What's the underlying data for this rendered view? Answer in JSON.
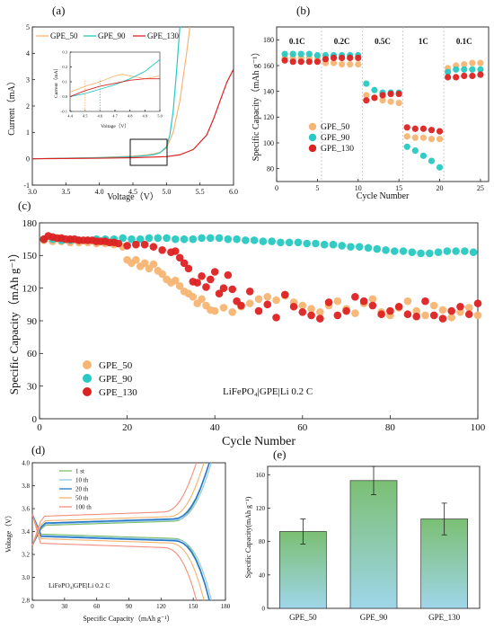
{
  "colors": {
    "gpe50": "#f7b573",
    "gpe90": "#27c9c2",
    "gpe130": "#dd2222",
    "bar_top": "#7bbf73",
    "bar_bottom": "#9fd6ea"
  },
  "chart_data": [
    {
      "panel": "(a)",
      "type": "line",
      "xlabel": "Voltage（V）",
      "ylabel": "Current（mA）",
      "xlim": [
        3.0,
        6.0
      ],
      "ylim": [
        -1,
        5
      ],
      "xticks": [
        "3.0",
        "3.5",
        "4.0",
        "4.5",
        "5.0",
        "5.5",
        "6.0"
      ],
      "yticks": [
        "-1",
        "0",
        "1",
        "2",
        "3",
        "4",
        "5"
      ],
      "legend": [
        "GPE_50",
        "GPE_90",
        "GPE_130"
      ],
      "series": [
        {
          "name": "GPE_50",
          "x": [
            3.0,
            3.5,
            4.0,
            4.3,
            4.5,
            4.7,
            4.8,
            4.9,
            5.0,
            5.1,
            5.2,
            5.3,
            5.35
          ],
          "y": [
            0.0,
            0.02,
            0.05,
            0.08,
            0.1,
            0.14,
            0.18,
            0.24,
            0.4,
            1.0,
            2.2,
            4.0,
            5.0
          ]
        },
        {
          "name": "GPE_90",
          "x": [
            3.0,
            3.5,
            4.0,
            4.3,
            4.5,
            4.7,
            4.8,
            4.9,
            5.0,
            5.05,
            5.1,
            5.15,
            5.2
          ],
          "y": [
            0.0,
            0.02,
            0.04,
            0.06,
            0.08,
            0.12,
            0.15,
            0.22,
            0.45,
            0.9,
            1.8,
            3.3,
            5.0
          ]
        },
        {
          "name": "GPE_130",
          "x": [
            3.0,
            3.5,
            4.0,
            4.5,
            5.0,
            5.2,
            5.4,
            5.6,
            5.7,
            5.8,
            5.9,
            6.0
          ],
          "y": [
            0.0,
            0.01,
            0.02,
            0.04,
            0.08,
            0.15,
            0.35,
            0.9,
            1.5,
            2.2,
            2.9,
            3.4
          ]
        }
      ],
      "inset": {
        "xlabel": "Voltage（V）",
        "ylabel": "Current（mA）",
        "xlim": [
          4.4,
          5.0
        ],
        "ylim": [
          -0.1,
          0.3
        ],
        "xticks": [
          "4.4",
          "4.5",
          "4.6",
          "4.7",
          "4.8",
          "4.9",
          "5.0"
        ],
        "yticks": [
          "-0.1",
          "0.0",
          "0.1",
          "0.2",
          "0.3"
        ],
        "series": [
          {
            "name": "GPE_50",
            "x": [
              4.4,
              4.5,
              4.6,
              4.7,
              4.75,
              4.8,
              4.9,
              5.0
            ],
            "y": [
              0.03,
              0.07,
              0.1,
              0.14,
              0.15,
              0.14,
              0.12,
              0.14
            ]
          },
          {
            "name": "GPE_90",
            "x": [
              4.4,
              4.5,
              4.6,
              4.7,
              4.8,
              4.9,
              5.0
            ],
            "y": [
              0.0,
              0.02,
              0.05,
              0.08,
              0.12,
              0.17,
              0.25
            ]
          },
          {
            "name": "GPE_130",
            "x": [
              4.4,
              4.5,
              4.6,
              4.7,
              4.8,
              4.9,
              5.0
            ],
            "y": [
              0.0,
              0.04,
              0.07,
              0.09,
              0.11,
              0.12,
              0.12
            ]
          }
        ]
      }
    },
    {
      "panel": "(b)",
      "type": "scatter",
      "xlabel": "Cycle Number",
      "ylabel": "Specific Capacity（mAh g⁻¹）",
      "xlim": [
        0,
        26
      ],
      "ylim": [
        70,
        190
      ],
      "xticks": [
        "0",
        "5",
        "10",
        "15",
        "20",
        "25"
      ],
      "yticks": [
        "80",
        "100",
        "120",
        "140",
        "160",
        "180"
      ],
      "rate_labels": [
        "0.1C",
        "0.2C",
        "0.5C",
        "1C",
        "0.1C"
      ],
      "rate_label_x": [
        2.5,
        8,
        13,
        18,
        23
      ],
      "separators": [
        5.5,
        10.5,
        15.5,
        20.5
      ],
      "legend": [
        "GPE_50",
        "GPE_90",
        "GPE_130"
      ],
      "series": [
        {
          "name": "GPE_50",
          "x": [
            1,
            2,
            3,
            4,
            5,
            6,
            7,
            8,
            9,
            10,
            11,
            12,
            13,
            14,
            15,
            16,
            17,
            18,
            19,
            20,
            21,
            22,
            23,
            24,
            25
          ],
          "y": [
            166,
            166,
            166,
            166,
            166,
            162,
            162,
            161,
            161,
            161,
            137,
            135,
            133,
            132,
            131,
            105,
            104,
            104,
            103,
            103,
            158,
            160,
            161,
            162,
            162
          ]
        },
        {
          "name": "GPE_90",
          "x": [
            1,
            2,
            3,
            4,
            5,
            6,
            7,
            8,
            9,
            10,
            11,
            12,
            13,
            14,
            15,
            16,
            17,
            18,
            19,
            20,
            21,
            22,
            23,
            24,
            25
          ],
          "y": [
            169,
            169,
            169,
            169,
            168,
            168,
            168,
            168,
            168,
            168,
            146,
            141,
            139,
            139,
            139,
            97,
            94,
            90,
            86,
            81,
            155,
            157,
            157,
            157,
            157
          ]
        },
        {
          "name": "GPE_130",
          "x": [
            1,
            2,
            3,
            4,
            5,
            6,
            7,
            8,
            9,
            10,
            11,
            12,
            13,
            14,
            15,
            16,
            17,
            18,
            19,
            20,
            21,
            22,
            23,
            24,
            25
          ],
          "y": [
            164,
            163,
            163,
            163,
            163,
            165,
            166,
            166,
            166,
            166,
            133,
            135,
            137,
            138,
            138,
            112,
            111,
            111,
            110,
            109,
            151,
            151,
            152,
            152,
            153
          ]
        }
      ]
    },
    {
      "panel": "(c)",
      "type": "scatter",
      "xlabel": "Cycle Number",
      "ylabel": "Specific Capacity（mAh g⁻¹）",
      "xlim": [
        0,
        100
      ],
      "ylim": [
        0,
        180
      ],
      "xticks": [
        "0",
        "20",
        "40",
        "60",
        "80",
        "100"
      ],
      "yticks": [
        "0",
        "30",
        "60",
        "90",
        "120",
        "150",
        "180"
      ],
      "annotation": "LiFePO₄|GPE|Li   0.2 C",
      "legend": [
        "GPE_50",
        "GPE_90",
        "GPE_130"
      ],
      "series": [
        {
          "name": "GPE_50",
          "x": [
            1,
            3,
            5,
            7,
            9,
            11,
            13,
            15,
            17,
            19,
            20,
            21,
            22,
            23,
            24,
            25,
            26,
            27,
            28,
            29,
            30,
            31,
            32,
            33,
            34,
            35,
            36,
            37,
            38,
            39,
            40,
            42,
            44,
            46,
            48,
            50,
            52,
            54,
            56,
            58,
            60,
            62,
            64,
            66,
            68,
            70,
            72,
            74,
            76,
            78,
            80,
            82,
            84,
            86,
            88,
            90,
            92,
            94,
            96,
            98,
            100
          ],
          "y": [
            164,
            163,
            163,
            162,
            162,
            162,
            161,
            161,
            160,
            158,
            146,
            143,
            146,
            140,
            143,
            138,
            142,
            136,
            133,
            128,
            125,
            127,
            122,
            117,
            115,
            112,
            106,
            110,
            104,
            100,
            99,
            102,
            98,
            103,
            106,
            110,
            112,
            109,
            113,
            107,
            104,
            101,
            98,
            104,
            108,
            101,
            97,
            106,
            110,
            98,
            95,
            102,
            108,
            99,
            95,
            104,
            100,
            93,
            98,
            102,
            95
          ]
        },
        {
          "name": "GPE_90",
          "x": [
            1,
            3,
            5,
            7,
            9,
            11,
            13,
            15,
            17,
            19,
            21,
            23,
            25,
            27,
            29,
            31,
            33,
            35,
            37,
            39,
            41,
            43,
            45,
            47,
            49,
            51,
            53,
            55,
            57,
            59,
            61,
            63,
            65,
            67,
            69,
            71,
            73,
            75,
            77,
            79,
            81,
            83,
            85,
            87,
            89,
            91,
            93,
            95,
            97,
            99
          ],
          "y": [
            165,
            165,
            164,
            164,
            164,
            164,
            165,
            165,
            165,
            166,
            165,
            165,
            166,
            166,
            166,
            165,
            165,
            165,
            166,
            166,
            166,
            165,
            165,
            164,
            164,
            163,
            163,
            162,
            162,
            162,
            161,
            161,
            160,
            160,
            159,
            158,
            158,
            157,
            156,
            155,
            154,
            154,
            153,
            152,
            152,
            153,
            154,
            154,
            154,
            153
          ]
        },
        {
          "name": "GPE_130",
          "x": [
            1,
            2,
            3,
            4,
            5,
            6,
            7,
            8,
            9,
            10,
            11,
            12,
            13,
            14,
            15,
            16,
            17,
            18,
            20,
            22,
            24,
            26,
            28,
            30,
            31,
            32,
            33,
            34,
            35,
            36,
            37,
            38,
            39,
            40,
            41,
            42,
            43,
            44,
            45,
            46,
            48,
            50,
            52,
            54,
            56,
            58,
            60,
            62,
            64,
            66,
            68,
            70,
            72,
            74,
            76,
            78,
            80,
            82,
            84,
            86,
            88,
            90,
            92,
            94,
            96,
            98,
            100
          ],
          "y": [
            165,
            168,
            167,
            166,
            166,
            165,
            165,
            165,
            164,
            164,
            164,
            164,
            163,
            163,
            163,
            162,
            162,
            161,
            159,
            160,
            160,
            158,
            155,
            153,
            154,
            148,
            143,
            138,
            126,
            125,
            131,
            121,
            128,
            135,
            115,
            120,
            132,
            119,
            108,
            104,
            117,
            99,
            105,
            93,
            114,
            103,
            98,
            95,
            92,
            107,
            95,
            99,
            112,
            108,
            104,
            96,
            99,
            103,
            96,
            94,
            108,
            95,
            92,
            99,
            103,
            96,
            106
          ]
        }
      ]
    },
    {
      "panel": "(d)",
      "type": "line",
      "xlabel": "Specific Capacity（mAh g⁻¹）",
      "ylabel": "Voltage（V）",
      "xlim": [
        0,
        180
      ],
      "ylim": [
        2.8,
        4.0
      ],
      "xticks": [
        "0",
        "30",
        "60",
        "90",
        "120",
        "150",
        "180"
      ],
      "yticks": [
        "2.8",
        "3.0",
        "3.2",
        "3.4",
        "3.6",
        "3.8",
        "4.0"
      ],
      "annotation": "LiFePO₄|GPE|Li   0.2 C",
      "legend": [
        "1 st",
        "10 th",
        "20 th",
        "50 th",
        "100 th"
      ],
      "legend_colors": [
        "#7fbf6a",
        "#8ec8e8",
        "#2a76c8",
        "#f1b46c",
        "#f38d7d"
      ],
      "series": [
        {
          "name": "1 st",
          "capacity": 165,
          "charge_v": 3.45,
          "discharge_v": 3.38
        },
        {
          "name": "10 th",
          "capacity": 167,
          "charge_v": 3.46,
          "discharge_v": 3.37
        },
        {
          "name": "20 th",
          "capacity": 165,
          "charge_v": 3.47,
          "discharge_v": 3.36
        },
        {
          "name": "50 th",
          "capacity": 160,
          "charge_v": 3.49,
          "discharge_v": 3.34
        },
        {
          "name": "100 th",
          "capacity": 153,
          "charge_v": 3.53,
          "discharge_v": 3.3
        }
      ]
    },
    {
      "panel": "(e)",
      "type": "bar",
      "ylabel": "Specific Capacity(mAh g⁻¹)",
      "ylim": [
        0,
        170
      ],
      "yticks": [
        "0",
        "40",
        "80",
        "120",
        "160"
      ],
      "categories": [
        "GPE_50",
        "GPE_90",
        "GPE_130"
      ],
      "values": [
        92,
        153,
        107
      ],
      "errors": [
        15,
        17,
        19
      ]
    }
  ]
}
